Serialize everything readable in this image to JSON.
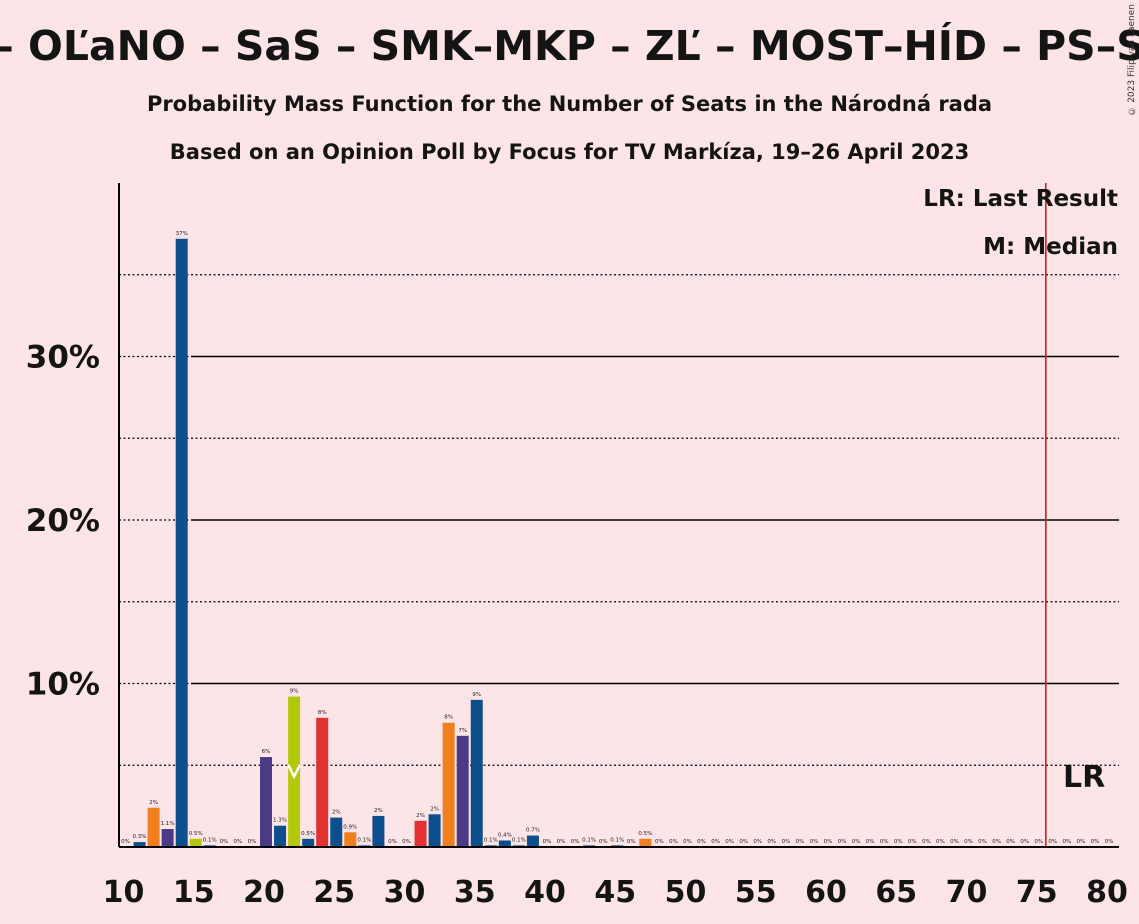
{
  "title": "– OĽaNO – SaS – SMK–MKP – ZĽ – MOST–HÍD – PS–S",
  "subtitle1": "Probability Mass Function for the Number of Seats in the Národná rada",
  "subtitle2": "Based on an Opinion Poll by Focus for TV Markíza, 19–26 April 2023",
  "copyright": "© 2023 Filip van Laenen",
  "legend": {
    "last_result": "LR: Last Result",
    "median": "M: Median",
    "lr_marker": "LR"
  },
  "colors": {
    "background": "#fde4e6",
    "blue": "#0c4f8c",
    "orange": "#f07f1f",
    "purple": "#4d3a86",
    "yellowgreen": "#b3c70b",
    "red": "#e23131",
    "lr_line": "#d42020"
  },
  "chart_data": {
    "type": "bar",
    "title": "Probability Mass Function for the Number of Seats in the Národná rada",
    "xlabel": "",
    "ylabel": "",
    "xlim": [
      10,
      80
    ],
    "ylim": [
      0,
      40
    ],
    "x_ticks": [
      10,
      15,
      20,
      25,
      30,
      35,
      40,
      45,
      50,
      55,
      60,
      65,
      70,
      75,
      80
    ],
    "y_ticks": [
      {
        "value": 10,
        "label": "10%"
      },
      {
        "value": 20,
        "label": "20%"
      },
      {
        "value": 30,
        "label": "30%"
      }
    ],
    "dotted_gridlines": [
      5,
      15,
      25,
      35
    ],
    "median": 22,
    "last_result": 76,
    "bars": [
      {
        "x": 10,
        "value": 0.0,
        "label": "0%",
        "color": "blue"
      },
      {
        "x": 11,
        "value": 0.3,
        "label": "0.3%",
        "color": "blue"
      },
      {
        "x": 12,
        "value": 2.4,
        "label": "2%",
        "color": "orange"
      },
      {
        "x": 13,
        "value": 1.1,
        "label": "1.1%",
        "color": "purple"
      },
      {
        "x": 14,
        "value": 37.2,
        "label": "37%",
        "color": "blue"
      },
      {
        "x": 15,
        "value": 0.5,
        "label": "0.5%",
        "color": "yellowgreen"
      },
      {
        "x": 16,
        "value": 0.1,
        "label": "0.1%",
        "color": "blue"
      },
      {
        "x": 17,
        "value": 0.0,
        "label": "0%",
        "color": "blue"
      },
      {
        "x": 18,
        "value": 0.0,
        "label": "0%",
        "color": "blue"
      },
      {
        "x": 19,
        "value": 0.0,
        "label": "0%",
        "color": "blue"
      },
      {
        "x": 20,
        "value": 5.5,
        "label": "6%",
        "color": "purple"
      },
      {
        "x": 21,
        "value": 1.3,
        "label": "1.3%",
        "color": "blue"
      },
      {
        "x": 22,
        "value": 9.2,
        "label": "9%",
        "color": "yellowgreen"
      },
      {
        "x": 23,
        "value": 0.5,
        "label": "0.5%",
        "color": "blue"
      },
      {
        "x": 24,
        "value": 7.9,
        "label": "8%",
        "color": "red"
      },
      {
        "x": 25,
        "value": 1.8,
        "label": "2%",
        "color": "blue"
      },
      {
        "x": 26,
        "value": 0.9,
        "label": "0.9%",
        "color": "orange"
      },
      {
        "x": 27,
        "value": 0.1,
        "label": "0.1%",
        "color": "blue"
      },
      {
        "x": 28,
        "value": 1.9,
        "label": "2%",
        "color": "blue"
      },
      {
        "x": 29,
        "value": 0.0,
        "label": "0%",
        "color": "blue"
      },
      {
        "x": 30,
        "value": 0.0,
        "label": "0%",
        "color": "blue"
      },
      {
        "x": 31,
        "value": 1.6,
        "label": "2%",
        "color": "red"
      },
      {
        "x": 32,
        "value": 2.0,
        "label": "2%",
        "color": "blue"
      },
      {
        "x": 33,
        "value": 7.6,
        "label": "8%",
        "color": "orange"
      },
      {
        "x": 34,
        "value": 6.8,
        "label": "7%",
        "color": "purple"
      },
      {
        "x": 35,
        "value": 9.0,
        "label": "9%",
        "color": "blue"
      },
      {
        "x": 36,
        "value": 0.1,
        "label": "0.1%",
        "color": "blue"
      },
      {
        "x": 37,
        "value": 0.4,
        "label": "0.4%",
        "color": "blue"
      },
      {
        "x": 38,
        "value": 0.1,
        "label": "0.1%",
        "color": "blue"
      },
      {
        "x": 39,
        "value": 0.7,
        "label": "0.7%",
        "color": "blue"
      },
      {
        "x": 40,
        "value": 0.0,
        "label": "0%",
        "color": "blue"
      },
      {
        "x": 41,
        "value": 0.0,
        "label": "0%",
        "color": "blue"
      },
      {
        "x": 42,
        "value": 0.0,
        "label": "0%",
        "color": "blue"
      },
      {
        "x": 43,
        "value": 0.1,
        "label": "0.1%",
        "color": "blue"
      },
      {
        "x": 44,
        "value": 0.0,
        "label": "0%",
        "color": "blue"
      },
      {
        "x": 45,
        "value": 0.1,
        "label": "0.1%",
        "color": "blue"
      },
      {
        "x": 46,
        "value": 0.0,
        "label": "0%",
        "color": "blue"
      },
      {
        "x": 47,
        "value": 0.5,
        "label": "0.5%",
        "color": "orange"
      },
      {
        "x": 48,
        "value": 0.0,
        "label": "0%",
        "color": "blue"
      },
      {
        "x": 49,
        "value": 0.0,
        "label": "0%",
        "color": "blue"
      },
      {
        "x": 50,
        "value": 0.0,
        "label": "0%",
        "color": "blue"
      },
      {
        "x": 51,
        "value": 0.0,
        "label": "0%",
        "color": "blue"
      },
      {
        "x": 52,
        "value": 0.0,
        "label": "0%",
        "color": "blue"
      },
      {
        "x": 53,
        "value": 0.0,
        "label": "0%",
        "color": "blue"
      },
      {
        "x": 54,
        "value": 0.0,
        "label": "0%",
        "color": "blue"
      },
      {
        "x": 55,
        "value": 0.0,
        "label": "0%",
        "color": "blue"
      },
      {
        "x": 56,
        "value": 0.0,
        "label": "0%",
        "color": "blue"
      },
      {
        "x": 57,
        "value": 0.0,
        "label": "0%",
        "color": "blue"
      },
      {
        "x": 58,
        "value": 0.0,
        "label": "0%",
        "color": "blue"
      },
      {
        "x": 59,
        "value": 0.0,
        "label": "0%",
        "color": "blue"
      },
      {
        "x": 60,
        "value": 0.0,
        "label": "0%",
        "color": "blue"
      },
      {
        "x": 61,
        "value": 0.0,
        "label": "0%",
        "color": "blue"
      },
      {
        "x": 62,
        "value": 0.0,
        "label": "0%",
        "color": "blue"
      },
      {
        "x": 63,
        "value": 0.0,
        "label": "0%",
        "color": "blue"
      },
      {
        "x": 64,
        "value": 0.0,
        "label": "0%",
        "color": "blue"
      },
      {
        "x": 65,
        "value": 0.0,
        "label": "0%",
        "color": "blue"
      },
      {
        "x": 66,
        "value": 0.0,
        "label": "0%",
        "color": "blue"
      },
      {
        "x": 67,
        "value": 0.0,
        "label": "0%",
        "color": "blue"
      },
      {
        "x": 68,
        "value": 0.0,
        "label": "0%",
        "color": "blue"
      },
      {
        "x": 69,
        "value": 0.0,
        "label": "0%",
        "color": "blue"
      },
      {
        "x": 70,
        "value": 0.0,
        "label": "0%",
        "color": "blue"
      },
      {
        "x": 71,
        "value": 0.0,
        "label": "0%",
        "color": "blue"
      },
      {
        "x": 72,
        "value": 0.0,
        "label": "0%",
        "color": "blue"
      },
      {
        "x": 73,
        "value": 0.0,
        "label": "0%",
        "color": "blue"
      },
      {
        "x": 74,
        "value": 0.0,
        "label": "0%",
        "color": "blue"
      },
      {
        "x": 75,
        "value": 0.0,
        "label": "0%",
        "color": "blue"
      },
      {
        "x": 76,
        "value": 0.0,
        "label": "0%",
        "color": "blue"
      },
      {
        "x": 77,
        "value": 0.0,
        "label": "0%",
        "color": "blue"
      },
      {
        "x": 78,
        "value": 0.0,
        "label": "0%",
        "color": "blue"
      },
      {
        "x": 79,
        "value": 0.0,
        "label": "0%",
        "color": "blue"
      },
      {
        "x": 80,
        "value": 0.0,
        "label": "0%",
        "color": "blue"
      }
    ]
  }
}
